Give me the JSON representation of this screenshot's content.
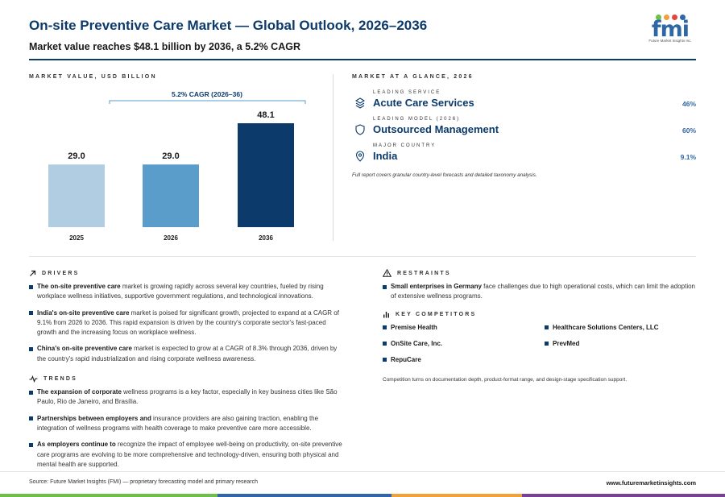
{
  "header": {
    "title": "On-site Preventive Care Market — Global Outlook, 2026–2036",
    "subtitle": "Market value reaches $48.1 billion by 2036, a 5.2% CAGR"
  },
  "logo": {
    "text": "fmi",
    "subtext": "Future Market Insights Inc.",
    "colors": [
      "#6cc04a",
      "#f0a13a",
      "#e2463f",
      "#2f67a6"
    ]
  },
  "chart_section": {
    "label": "MARKET VALUE, USD BILLION"
  },
  "chart_data": {
    "type": "bar",
    "categories": [
      "2025",
      "2026",
      "2036"
    ],
    "values": [
      29.0,
      29.0,
      48.1
    ],
    "value_labels": [
      "29.0",
      "29.0",
      "48.1"
    ],
    "colors": [
      "#b0cde2",
      "#5a9dca",
      "#0c3a6b"
    ],
    "annotation": "5.2% CAGR (2026–36)",
    "ylim": [
      0,
      48.1
    ]
  },
  "glance": {
    "label": "MARKET AT A GLANCE, 2026",
    "items": [
      {
        "small": "LEADING SERVICE",
        "main": "Acute Care Services",
        "value": "46%",
        "icon": "layers-icon"
      },
      {
        "small": "LEADING MODEL (2026)",
        "main": "Outsourced Management",
        "value": "60%",
        "icon": "shield-icon"
      },
      {
        "small": "MAJOR COUNTRY",
        "main": "India",
        "value": "9.1%",
        "icon": "location-pin-icon"
      }
    ],
    "note": "Full report covers granular country-level forecasts and detailed taxonomy analysis."
  },
  "drivers": {
    "label": "DRIVERS",
    "items": [
      {
        "bold": "The on-site preventive care",
        "text": " market is growing rapidly across several key countries, fueled by rising workplace wellness initiatives, supportive government regulations, and technological innovations."
      },
      {
        "bold": "India's on-site preventive care",
        "text": " market is poised for significant growth, projected to expand at a CAGR of 9.1% from 2026 to 2036. This rapid expansion is driven by the country's corporate sector's fast-paced growth and the increasing focus on workplace wellness."
      },
      {
        "bold": "China's on-site preventive care",
        "text": " market is expected to grow at a CAGR of 8.3% through 2036, driven by the country's rapid industrialization and rising corporate wellness awareness."
      }
    ]
  },
  "trends": {
    "label": "TRENDS",
    "items": [
      {
        "bold": "The expansion of corporate",
        "text": " wellness programs is a key factor, especially in key business cities like São Paulo, Rio de Janeiro, and Brasília."
      },
      {
        "bold": "Partnerships between employers and",
        "text": " insurance providers are also gaining traction, enabling the integration of wellness programs with health coverage to make preventive care more accessible."
      },
      {
        "bold": "As employers continue to",
        "text": " recognize the impact of employee well-being on productivity, on-site preventive care programs are evolving to be more comprehensive and technology-driven, ensuring both physical and mental health are supported."
      }
    ]
  },
  "restraints": {
    "label": "RESTRAINTS",
    "items": [
      {
        "bold": "Small enterprises in Germany",
        "text": " face challenges due to high operational costs, which can limit the adoption of extensive wellness programs."
      }
    ]
  },
  "competitors": {
    "label": "KEY COMPETITORS",
    "items": [
      "Premise Health",
      "Healthcare Solutions Centers, LLC",
      "OnSite Care, Inc.",
      "PrevMed",
      "RepuCare"
    ],
    "note": "Competition turns on documentation depth, product-format range, and design-stage specification support."
  },
  "footer": {
    "source": "Source: Future Market Insights (FMI) — proprietary forecasting model and primary research",
    "url": "www.futuremarketinsights.com",
    "bar_colors": [
      "#6cc04a",
      "#2f67a6",
      "#f0a13a",
      "#7b3f98"
    ]
  }
}
